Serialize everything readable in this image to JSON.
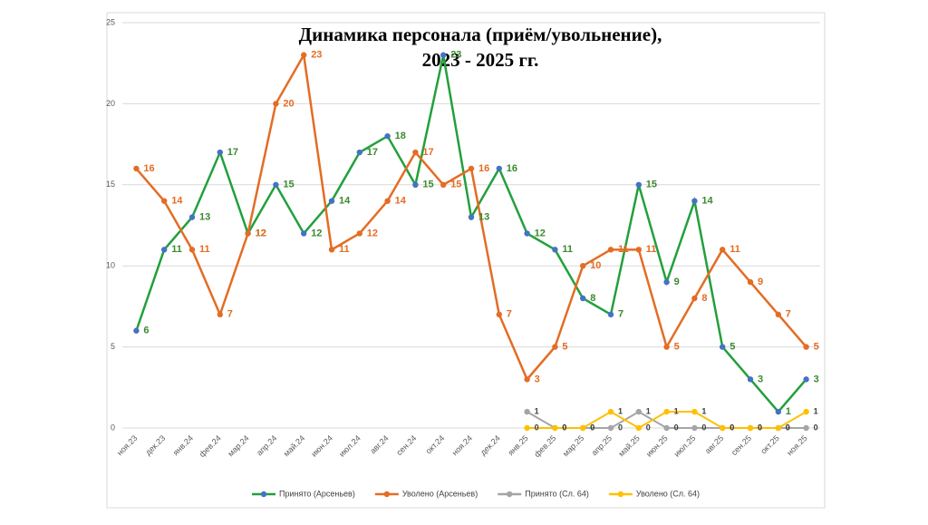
{
  "chart_data": {
    "type": "line",
    "title_lines": [
      "Динамика персонала (приём/увольнение),",
      "2023 - 2025 гг."
    ],
    "categories": [
      "ноя.23",
      "дек.23",
      "янв.24",
      "фев.24",
      "мар.24",
      "апр.24",
      "май.24",
      "июн.24",
      "июл.24",
      "авг.24",
      "сен.24",
      "окт.24",
      "ноя.24",
      "дек.24",
      "янв.25",
      "фев.25",
      "мар.25",
      "апр.25",
      "май.25",
      "июн.25",
      "июл.25",
      "авг.25",
      "сен.25",
      "окт.25",
      "ноя.25"
    ],
    "series": [
      {
        "name": "Принято (Арсеньев)",
        "color": "#22a03c",
        "marker_color": "#4472c4",
        "values": [
          6,
          11,
          13,
          17,
          12,
          15,
          12,
          14,
          17,
          18,
          15,
          23,
          13,
          16,
          12,
          11,
          8,
          7,
          15,
          9,
          14,
          5,
          3,
          1,
          3
        ]
      },
      {
        "name": "Уволено (Арсеньев)",
        "color": "#e46c24",
        "marker_color": "#e46c24",
        "values": [
          16,
          14,
          11,
          7,
          12,
          20,
          23,
          11,
          12,
          14,
          17,
          15,
          16,
          7,
          3,
          5,
          10,
          11,
          11,
          5,
          8,
          11,
          9,
          7,
          5
        ]
      },
      {
        "name": "Принято (Сл. 64)",
        "color": "#a5a5a5",
        "marker_color": "#a5a5a5",
        "values": [
          null,
          null,
          null,
          null,
          null,
          null,
          null,
          null,
          null,
          null,
          null,
          null,
          null,
          null,
          1,
          0,
          0,
          0,
          1,
          0,
          0,
          0,
          0,
          0,
          0
        ]
      },
      {
        "name": "Уволено (Сл. 64)",
        "color": "#ffc000",
        "marker_color": "#ffc000",
        "values": [
          null,
          null,
          null,
          null,
          null,
          null,
          null,
          null,
          null,
          null,
          null,
          null,
          null,
          null,
          0,
          0,
          0,
          1,
          0,
          1,
          1,
          0,
          0,
          0,
          1
        ]
      }
    ],
    "ylim": [
      0,
      25
    ],
    "yticks": [
      0,
      5,
      10,
      15,
      20,
      25
    ],
    "grid": true
  }
}
